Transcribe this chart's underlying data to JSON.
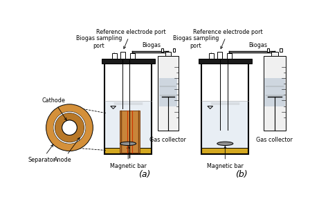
{
  "bg_color": "#ffffff",
  "line_color": "#000000",
  "lid_color": "#1a1a1a",
  "electrode_fill": "#c8853a",
  "electrode_dark": "#7a4010",
  "electrode_stripe": "#cc3300",
  "sand_color": "#d4a820",
  "water_color": "#e8eef4",
  "syringe_body": "#f0f0f0",
  "syringe_fill": "#c0ccd8",
  "magnetic_bar_color": "#909090",
  "title_a": "(a)",
  "title_b": "(b)",
  "label_ref_port": "Reference electrode port",
  "label_biogas_sampling": "Biogas sampling\nport",
  "label_biogas": "Biogas",
  "label_gas_collector": "Gas collector",
  "label_magnetic_bar": "Magnetic bar",
  "label_cathode": "Cathode",
  "label_anode": "Anode",
  "label_separator": "Separator",
  "ring_outer_color": "#d4903a",
  "ring_inner_color": "#b87828",
  "ring_gap_color": "#e8c87a"
}
